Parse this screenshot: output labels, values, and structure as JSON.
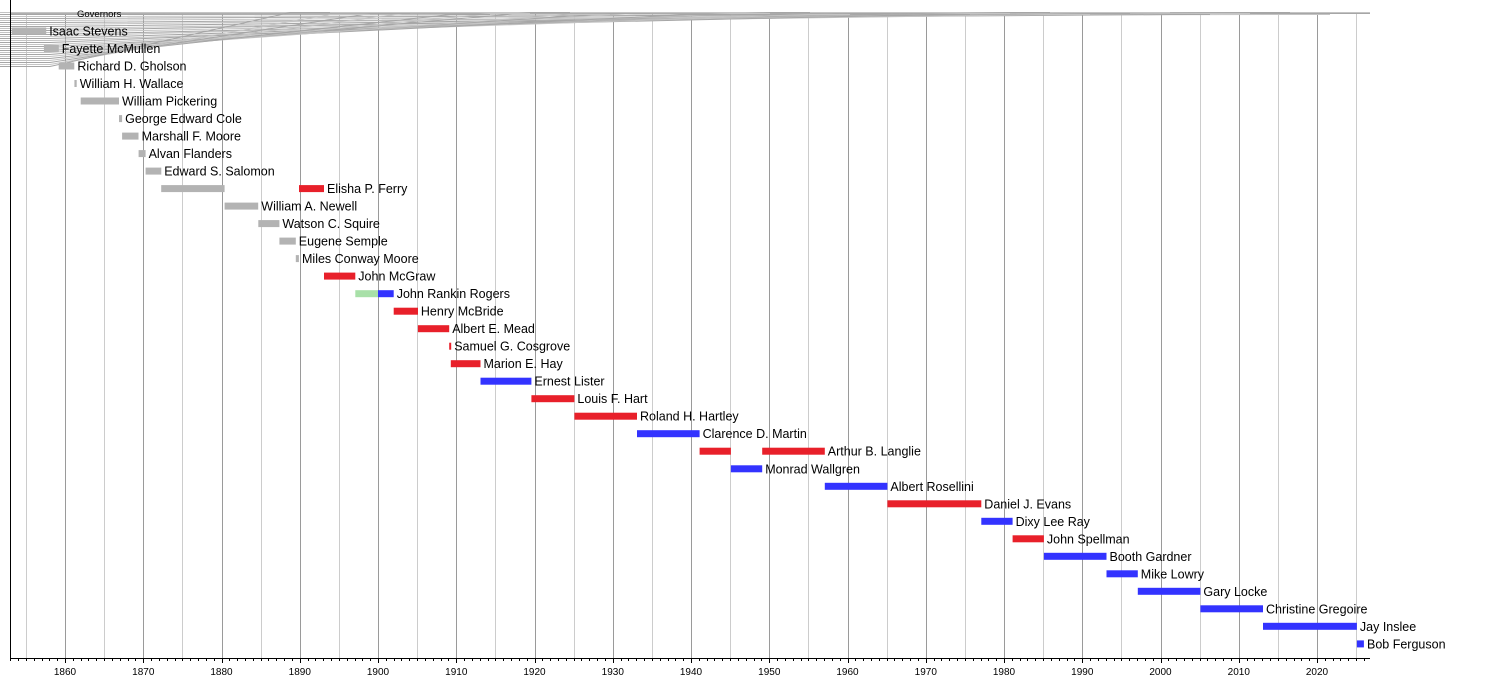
{
  "chart_data": {
    "type": "timeline",
    "title": "Governors",
    "xlabel": "",
    "ylabel": "",
    "xlim": [
      1853,
      2026.8
    ],
    "x_ticks": [
      1860,
      1870,
      1880,
      1890,
      1900,
      1910,
      1920,
      1930,
      1940,
      1950,
      1960,
      1970,
      1980,
      1990,
      2000,
      2010,
      2020
    ],
    "grid": true,
    "colors": {
      "territorial": "#b3b3b3",
      "republican": "#e8202a",
      "democratic": "#3333ff",
      "populist": "#a8e0a8"
    },
    "rows": [
      {
        "name": "Isaac Stevens",
        "terms": [
          {
            "start": 1853.2,
            "end": 1857.6,
            "party": "territorial"
          }
        ]
      },
      {
        "name": "Fayette McMullen",
        "terms": [
          {
            "start": 1857.3,
            "end": 1859.2,
            "party": "territorial"
          }
        ]
      },
      {
        "name": "Richard D. Gholson",
        "terms": [
          {
            "start": 1859.2,
            "end": 1861.2,
            "party": "territorial"
          }
        ]
      },
      {
        "name": "William H. Wallace",
        "terms": [
          {
            "start": 1861.2,
            "end": 1861.5,
            "party": "territorial"
          }
        ]
      },
      {
        "name": "William Pickering",
        "terms": [
          {
            "start": 1862.0,
            "end": 1866.9,
            "party": "territorial"
          }
        ]
      },
      {
        "name": "George Edward Cole",
        "terms": [
          {
            "start": 1866.9,
            "end": 1867.3,
            "party": "territorial"
          }
        ]
      },
      {
        "name": "Marshall F. Moore",
        "terms": [
          {
            "start": 1867.3,
            "end": 1869.4,
            "party": "territorial"
          }
        ]
      },
      {
        "name": "Alvan Flanders",
        "terms": [
          {
            "start": 1869.4,
            "end": 1870.3,
            "party": "territorial"
          }
        ]
      },
      {
        "name": "Edward S. Salomon",
        "terms": [
          {
            "start": 1870.3,
            "end": 1872.3,
            "party": "territorial"
          }
        ]
      },
      {
        "name": "Elisha P. Ferry",
        "terms": [
          {
            "start": 1872.3,
            "end": 1880.4,
            "party": "territorial"
          },
          {
            "start": 1889.9,
            "end": 1893.1,
            "party": "republican"
          }
        ]
      },
      {
        "name": "William A. Newell",
        "terms": [
          {
            "start": 1880.4,
            "end": 1884.7,
            "party": "territorial"
          }
        ]
      },
      {
        "name": "Watson C. Squire",
        "terms": [
          {
            "start": 1884.7,
            "end": 1887.4,
            "party": "territorial"
          }
        ]
      },
      {
        "name": "Eugene Semple",
        "terms": [
          {
            "start": 1887.4,
            "end": 1889.5,
            "party": "territorial"
          }
        ]
      },
      {
        "name": "Miles Conway Moore",
        "terms": [
          {
            "start": 1889.5,
            "end": 1889.9,
            "party": "territorial"
          }
        ]
      },
      {
        "name": "John McGraw",
        "terms": [
          {
            "start": 1893.1,
            "end": 1897.1,
            "party": "republican"
          }
        ]
      },
      {
        "name": "John Rankin Rogers",
        "terms": [
          {
            "start": 1897.1,
            "end": 1900.0,
            "party": "populist"
          },
          {
            "start": 1900.0,
            "end": 1902.0,
            "party": "democratic"
          }
        ]
      },
      {
        "name": "Henry McBride",
        "terms": [
          {
            "start": 1902.0,
            "end": 1905.1,
            "party": "republican"
          }
        ]
      },
      {
        "name": "Albert E. Mead",
        "terms": [
          {
            "start": 1905.1,
            "end": 1909.1,
            "party": "republican"
          }
        ]
      },
      {
        "name": "Samuel G. Cosgrove",
        "terms": [
          {
            "start": 1909.1,
            "end": 1909.3,
            "party": "republican"
          }
        ]
      },
      {
        "name": "Marion E. Hay",
        "terms": [
          {
            "start": 1909.3,
            "end": 1913.1,
            "party": "republican"
          }
        ]
      },
      {
        "name": "Ernest Lister",
        "terms": [
          {
            "start": 1913.1,
            "end": 1919.6,
            "party": "democratic"
          }
        ]
      },
      {
        "name": "Louis F. Hart",
        "terms": [
          {
            "start": 1919.6,
            "end": 1925.1,
            "party": "republican"
          }
        ]
      },
      {
        "name": "Roland H. Hartley",
        "terms": [
          {
            "start": 1925.1,
            "end": 1933.1,
            "party": "republican"
          }
        ]
      },
      {
        "name": "Clarence D. Martin",
        "terms": [
          {
            "start": 1933.1,
            "end": 1941.1,
            "party": "democratic"
          }
        ]
      },
      {
        "name": "Arthur B. Langlie",
        "terms": [
          {
            "start": 1941.1,
            "end": 1945.1,
            "party": "republican"
          },
          {
            "start": 1949.1,
            "end": 1957.1,
            "party": "republican"
          }
        ]
      },
      {
        "name": "Monrad Wallgren",
        "terms": [
          {
            "start": 1945.1,
            "end": 1949.1,
            "party": "democratic"
          }
        ]
      },
      {
        "name": "Albert Rosellini",
        "terms": [
          {
            "start": 1957.1,
            "end": 1965.1,
            "party": "democratic"
          }
        ]
      },
      {
        "name": "Daniel J. Evans",
        "terms": [
          {
            "start": 1965.1,
            "end": 1977.1,
            "party": "republican"
          }
        ]
      },
      {
        "name": "Dixy Lee Ray",
        "terms": [
          {
            "start": 1977.1,
            "end": 1981.1,
            "party": "democratic"
          }
        ]
      },
      {
        "name": "John Spellman",
        "terms": [
          {
            "start": 1981.1,
            "end": 1985.1,
            "party": "republican"
          }
        ]
      },
      {
        "name": "Booth Gardner",
        "terms": [
          {
            "start": 1985.1,
            "end": 1993.1,
            "party": "democratic"
          }
        ]
      },
      {
        "name": "Mike Lowry",
        "terms": [
          {
            "start": 1993.1,
            "end": 1997.1,
            "party": "democratic"
          }
        ]
      },
      {
        "name": "Gary Locke",
        "terms": [
          {
            "start": 1997.1,
            "end": 2005.1,
            "party": "democratic"
          }
        ]
      },
      {
        "name": "Christine Gregoire",
        "terms": [
          {
            "start": 2005.1,
            "end": 2013.1,
            "party": "democratic"
          }
        ]
      },
      {
        "name": "Jay Inslee",
        "terms": [
          {
            "start": 2013.1,
            "end": 2025.1,
            "party": "democratic"
          }
        ]
      },
      {
        "name": "Bob Ferguson",
        "terms": [
          {
            "start": 2025.1,
            "end": 2026.0,
            "party": "democratic"
          }
        ]
      }
    ]
  }
}
